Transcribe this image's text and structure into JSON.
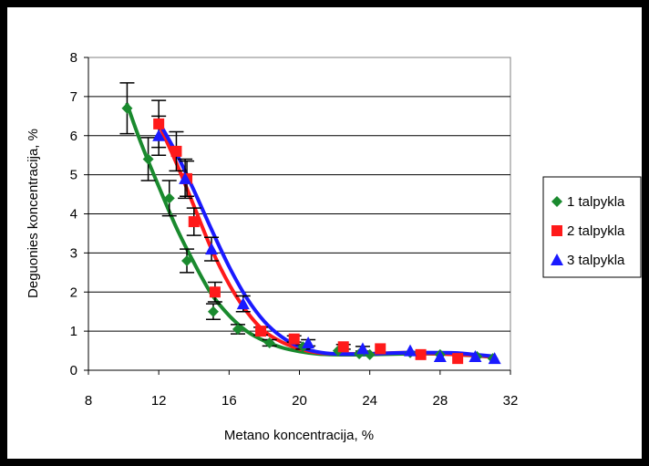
{
  "chart_data": {
    "type": "scatter",
    "xlabel": "Metano koncentracija, %",
    "ylabel": "Deguonies koncentracija, %",
    "xlim": [
      8,
      32
    ],
    "ylim": [
      0,
      8
    ],
    "x_ticks": [
      "8",
      "12",
      "16",
      "20",
      "24",
      "28",
      "32"
    ],
    "y_ticks": [
      "0",
      "1",
      "2",
      "3",
      "4",
      "5",
      "6",
      "7",
      "8"
    ],
    "grid": "horizontal",
    "legend_position": "right",
    "plot_background": "#ffffff",
    "series": [
      {
        "name": "1 talpykla",
        "marker": "diamond",
        "color": "#1a8a2e",
        "points": [
          [
            10.2,
            6.7
          ],
          [
            11.4,
            5.4
          ],
          [
            12.6,
            4.4
          ],
          [
            13.6,
            2.8
          ],
          [
            15.1,
            1.5
          ],
          [
            16.5,
            1.05
          ],
          [
            18.3,
            0.7
          ],
          [
            20.2,
            0.6
          ],
          [
            22.2,
            0.5
          ],
          [
            23.4,
            0.42
          ],
          [
            24.0,
            0.4
          ],
          [
            26.3,
            0.45
          ],
          [
            28.0,
            0.4
          ],
          [
            30.1,
            0.35
          ],
          [
            31.0,
            0.3
          ]
        ],
        "errors": [
          0.65,
          0.55,
          0.45,
          0.3,
          0.2,
          0.12,
          0.08,
          0.06,
          0.05,
          0.04,
          0.04,
          0.04,
          0.04,
          0.04,
          0.03
        ],
        "trend": [
          [
            10.2,
            6.8
          ],
          [
            11.0,
            5.8
          ],
          [
            12.0,
            4.7
          ],
          [
            13.0,
            3.65
          ],
          [
            14.0,
            2.75
          ],
          [
            15.0,
            1.95
          ],
          [
            16.0,
            1.4
          ],
          [
            17.0,
            1.0
          ],
          [
            18.0,
            0.75
          ],
          [
            19.0,
            0.58
          ],
          [
            20.0,
            0.48
          ],
          [
            21.0,
            0.42
          ],
          [
            22.0,
            0.4
          ],
          [
            24.0,
            0.4
          ],
          [
            26.0,
            0.42
          ],
          [
            28.0,
            0.42
          ],
          [
            29.0,
            0.4
          ],
          [
            30.0,
            0.37
          ],
          [
            31.0,
            0.34
          ]
        ]
      },
      {
        "name": "2 talpykla",
        "marker": "square",
        "color": "#ff1a1a",
        "points": [
          [
            12.0,
            6.3
          ],
          [
            13.0,
            5.6
          ],
          [
            13.6,
            4.9
          ],
          [
            14.0,
            3.8
          ],
          [
            15.2,
            2.0
          ],
          [
            17.8,
            1.0
          ],
          [
            19.7,
            0.8
          ],
          [
            22.5,
            0.6
          ],
          [
            24.6,
            0.55
          ],
          [
            26.9,
            0.4
          ],
          [
            29.0,
            0.3
          ]
        ],
        "errors": [
          0.6,
          0.5,
          0.45,
          0.35,
          0.25,
          0.1,
          0.08,
          0.06,
          0.05,
          0.04,
          0.03
        ],
        "trend": [
          [
            12.0,
            6.3
          ],
          [
            13.0,
            5.3
          ],
          [
            14.0,
            4.2
          ],
          [
            15.0,
            3.1
          ],
          [
            16.0,
            2.2
          ],
          [
            17.0,
            1.5
          ],
          [
            18.0,
            1.0
          ],
          [
            19.0,
            0.72
          ],
          [
            20.0,
            0.55
          ],
          [
            21.0,
            0.45
          ],
          [
            22.0,
            0.42
          ],
          [
            24.0,
            0.42
          ],
          [
            26.0,
            0.45
          ],
          [
            28.0,
            0.42
          ],
          [
            29.0,
            0.4
          ],
          [
            30.0,
            0.38
          ],
          [
            31.0,
            0.34
          ]
        ]
      },
      {
        "name": "3 talpykla",
        "marker": "triangle",
        "color": "#1a1aff",
        "points": [
          [
            12.0,
            6.0
          ],
          [
            13.5,
            4.9
          ],
          [
            15.0,
            3.1
          ],
          [
            16.8,
            1.7
          ],
          [
            20.5,
            0.7
          ],
          [
            23.6,
            0.55
          ],
          [
            26.3,
            0.5
          ],
          [
            28.0,
            0.35
          ],
          [
            30.0,
            0.35
          ],
          [
            31.1,
            0.3
          ]
        ],
        "errors": [
          0.5,
          0.5,
          0.3,
          0.2,
          0.08,
          0.06,
          0.05,
          0.04,
          0.04,
          0.03
        ],
        "trend": [
          [
            12.0,
            6.35
          ],
          [
            13.0,
            5.55
          ],
          [
            14.0,
            4.6
          ],
          [
            15.0,
            3.6
          ],
          [
            16.0,
            2.65
          ],
          [
            17.0,
            1.85
          ],
          [
            18.0,
            1.25
          ],
          [
            19.0,
            0.85
          ],
          [
            20.0,
            0.6
          ],
          [
            21.0,
            0.47
          ],
          [
            22.0,
            0.42
          ],
          [
            24.0,
            0.42
          ],
          [
            26.0,
            0.45
          ],
          [
            28.0,
            0.45
          ],
          [
            29.0,
            0.44
          ],
          [
            30.0,
            0.4
          ],
          [
            31.0,
            0.36
          ]
        ]
      }
    ]
  }
}
